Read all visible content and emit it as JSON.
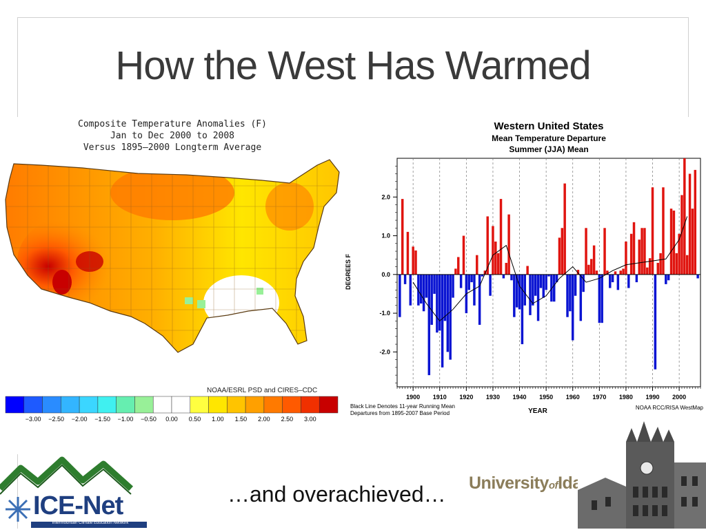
{
  "slide": {
    "title": "How the West Has Warmed",
    "tagline": "…and overachieved…",
    "university_logo": {
      "main": "University",
      "of": "of",
      "name": "Idaho"
    },
    "icenet_logo": {
      "name": "ICE-Net",
      "subtitle": "Intermountain Climate Education Network"
    }
  },
  "map": {
    "title_lines": [
      "Composite Temperature Anomalies (F)",
      "Jan to Dec 2000 to 2008",
      "Versus 1895–2000 Longterm Average"
    ],
    "credit": "NOAA/ESRL PSD and CIRES–CDC",
    "colorbar": {
      "ticks": [
        "−3.00",
        "−2.50",
        "−2.00",
        "−1.50",
        "−1.00",
        "−0.50",
        "0.00",
        "0.50",
        "1.00",
        "1.50",
        "2.00",
        "2.50",
        "3.00"
      ],
      "colors": [
        "#0000ff",
        "#1e5aff",
        "#2a8cff",
        "#33b5ff",
        "#3bd6ff",
        "#40f0f0",
        "#66eeb0",
        "#98f098",
        "#ffffff",
        "#ffffff",
        "#ffff40",
        "#ffe600",
        "#ffc400",
        "#ffa000",
        "#ff7a00",
        "#ff5a00",
        "#f03000",
        "#c80000"
      ]
    }
  },
  "chart_data": {
    "type": "bar",
    "title": "Western United States",
    "subtitle_lines": [
      "Mean Temperature Departure",
      "Summer (JJA) Mean"
    ],
    "xlabel": "YEAR",
    "ylabel": "DEGREES F",
    "xlim": [
      1894,
      2008
    ],
    "ylim": [
      -2.9,
      3.0
    ],
    "xticks": [
      "1900",
      "1910",
      "1920",
      "1930",
      "1940",
      "1950",
      "1960",
      "1970",
      "1980",
      "1990",
      "2000"
    ],
    "yticks": [
      "2.0",
      "1.0",
      "0.0",
      "-1.0",
      "-2.0"
    ],
    "note_left": [
      "Black Line Denotes 11-year Running Mean",
      "Departures from 1895-2007 Base Period"
    ],
    "note_right": "NOAA RCC/RISA WestMap",
    "positive_color": "#e0140f",
    "negative_color": "#0a14d2",
    "x": [
      1895,
      1896,
      1897,
      1898,
      1899,
      1900,
      1901,
      1902,
      1903,
      1904,
      1905,
      1906,
      1907,
      1908,
      1909,
      1910,
      1911,
      1912,
      1913,
      1914,
      1915,
      1916,
      1917,
      1918,
      1919,
      1920,
      1921,
      1922,
      1923,
      1924,
      1925,
      1926,
      1927,
      1928,
      1929,
      1930,
      1931,
      1932,
      1933,
      1934,
      1935,
      1936,
      1937,
      1938,
      1939,
      1940,
      1941,
      1942,
      1943,
      1944,
      1945,
      1946,
      1947,
      1948,
      1949,
      1950,
      1951,
      1952,
      1953,
      1954,
      1955,
      1956,
      1957,
      1958,
      1959,
      1960,
      1961,
      1962,
      1963,
      1964,
      1965,
      1966,
      1967,
      1968,
      1969,
      1970,
      1971,
      1972,
      1973,
      1974,
      1975,
      1976,
      1977,
      1978,
      1979,
      1980,
      1981,
      1982,
      1983,
      1984,
      1985,
      1986,
      1987,
      1988,
      1989,
      1990,
      1991,
      1992,
      1993,
      1994,
      1995,
      1996,
      1997,
      1998,
      1999,
      2000,
      2001,
      2002,
      2003,
      2004,
      2005,
      2006,
      2007
    ],
    "values": [
      -1.1,
      1.95,
      -0.25,
      1.1,
      -0.8,
      0.72,
      0.62,
      -0.8,
      -0.75,
      -0.95,
      -0.6,
      -2.6,
      -1.3,
      -0.5,
      -1.5,
      -1.45,
      -2.4,
      -1.2,
      -2.0,
      -2.2,
      -0.6,
      0.15,
      0.45,
      -0.35,
      1.0,
      -1.0,
      -0.4,
      -0.2,
      -0.8,
      0.5,
      -1.3,
      -0.05,
      0.1,
      1.5,
      -0.55,
      1.25,
      0.85,
      0.55,
      1.95,
      -0.1,
      0.3,
      1.55,
      -0.15,
      -1.1,
      -0.85,
      -0.9,
      -1.8,
      -0.8,
      0.22,
      -1.05,
      -0.8,
      -0.55,
      -1.2,
      -0.35,
      -0.6,
      -0.4,
      -0.05,
      -0.7,
      -0.7,
      -0.2,
      0.95,
      1.2,
      2.35,
      -1.1,
      -0.95,
      -1.7,
      -0.55,
      0.12,
      -1.2,
      -0.45,
      1.2,
      0.25,
      0.4,
      0.75,
      0.1,
      -1.25,
      -1.25,
      1.2,
      0.1,
      -0.35,
      -0.2,
      0.08,
      -0.4,
      0.1,
      0.15,
      0.85,
      -0.35,
      1.05,
      1.35,
      -0.2,
      0.9,
      1.2,
      1.2,
      0.18,
      0.42,
      2.25,
      -2.45,
      0.3,
      0.55,
      2.25,
      -0.25,
      -0.15,
      1.7,
      1.65,
      0.55,
      1.05,
      2.05,
      3.0,
      0.5,
      2.6,
      1.7,
      2.7,
      -0.1
    ],
    "running_mean": [
      [
        1900,
        -0.2
      ],
      [
        1905,
        -0.75
      ],
      [
        1910,
        -1.2
      ],
      [
        1915,
        -0.9
      ],
      [
        1920,
        -0.5
      ],
      [
        1925,
        -0.3
      ],
      [
        1930,
        0.5
      ],
      [
        1935,
        0.75
      ],
      [
        1940,
        -0.3
      ],
      [
        1945,
        -0.75
      ],
      [
        1950,
        -0.55
      ],
      [
        1955,
        -0.1
      ],
      [
        1960,
        0.2
      ],
      [
        1965,
        -0.2
      ],
      [
        1970,
        -0.1
      ],
      [
        1975,
        0.1
      ],
      [
        1980,
        0.25
      ],
      [
        1985,
        0.3
      ],
      [
        1990,
        0.35
      ],
      [
        1995,
        0.4
      ],
      [
        2000,
        0.9
      ],
      [
        2003,
        1.5
      ]
    ]
  }
}
